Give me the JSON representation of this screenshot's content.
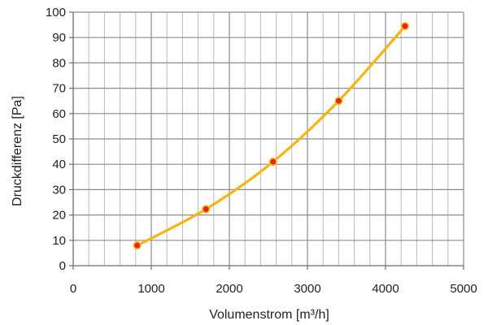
{
  "chart_data": {
    "type": "line",
    "title": "",
    "xlabel": "Volumenstrom [m³/h]",
    "ylabel": "Druckdifferenz  [Pa]",
    "xlim": [
      0,
      5000
    ],
    "ylim": [
      0,
      100
    ],
    "x_ticks": [
      "0",
      "1000",
      "2000",
      "3000",
      "4000",
      "5000"
    ],
    "y_ticks": [
      "0",
      "10",
      "20",
      "30",
      "40",
      "50",
      "60",
      "70",
      "80",
      "90",
      "100"
    ],
    "grid": true,
    "legend": "none",
    "series": [
      {
        "x": [
          820,
          1700,
          2560,
          3400,
          4250
        ],
        "y": [
          8,
          22.3,
          41,
          65,
          94.5
        ],
        "line_color": "#f5b512",
        "marker_color": "#e8231a"
      }
    ]
  }
}
